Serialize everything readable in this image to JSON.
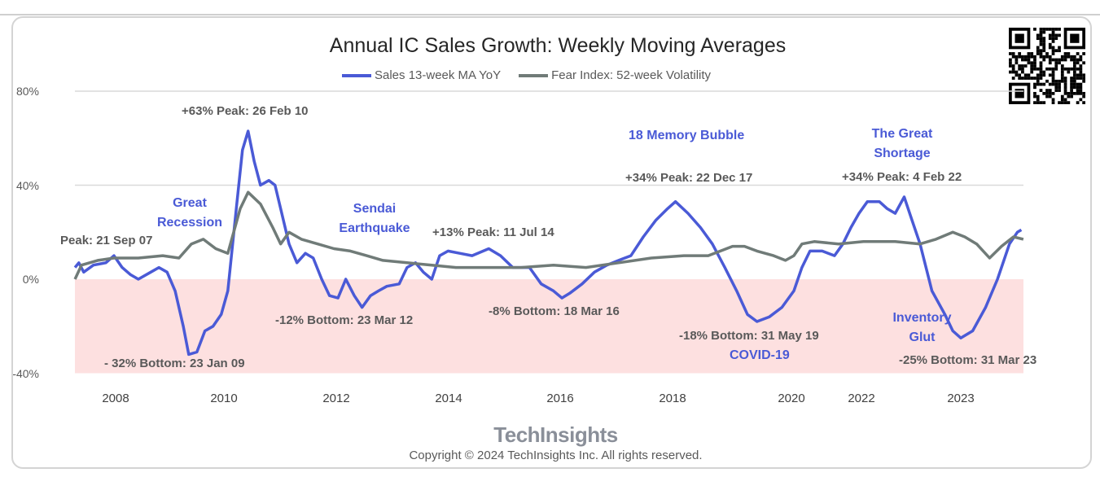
{
  "chart_data": {
    "type": "line",
    "title": "Annual IC Sales Growth: Weekly Moving Averages",
    "legend_position": "top",
    "ylim": [
      -40,
      80
    ],
    "y_ticks": [
      "80%",
      "40%",
      "0%",
      "-40%"
    ],
    "y_tick_values": [
      80,
      40,
      0,
      -40
    ],
    "x_ticks": [
      "2008",
      "2010",
      "2012",
      "2014",
      "2016",
      "2018",
      "2020",
      "2022",
      "2023"
    ],
    "grid": true,
    "negative_region_color": "#fde0e0",
    "series": [
      {
        "name": "Sales 13-week MA YoY",
        "color": "#4a5ad6",
        "x": [
          2007.25,
          2007.32,
          2007.41,
          2007.59,
          2007.82,
          2007.97,
          2008.12,
          2008.27,
          2008.42,
          2008.65,
          2008.8,
          2008.95,
          2009.1,
          2009.25,
          2009.35,
          2009.5,
          2009.65,
          2009.8,
          2009.95,
          2010.07,
          2010.22,
          2010.33,
          2010.43,
          2010.54,
          2010.65,
          2010.8,
          2010.91,
          2011.01,
          2011.16,
          2011.3,
          2011.45,
          2011.59,
          2011.74,
          2011.88,
          2012.03,
          2012.17,
          2012.32,
          2012.46,
          2012.61,
          2012.75,
          2012.9,
          2013.12,
          2013.26,
          2013.41,
          2013.55,
          2013.7,
          2013.84,
          2013.99,
          2014.2,
          2014.42,
          2014.72,
          2014.93,
          2015.15,
          2015.45,
          2015.66,
          2015.88,
          2016.03,
          2016.17,
          2016.39,
          2016.61,
          2016.83,
          2017.04,
          2017.26,
          2017.48,
          2017.7,
          2017.91,
          2018.05,
          2018.26,
          2018.47,
          2018.67,
          2018.88,
          2019.08,
          2019.26,
          2019.42,
          2019.63,
          2019.84,
          2020.07,
          2020.3,
          2020.53,
          2020.88,
          2021.23,
          2021.47,
          2021.7,
          2021.93,
          2022.06,
          2022.18,
          2022.26,
          2022.34,
          2022.43,
          2022.51,
          2022.59,
          2022.71,
          2022.84,
          2022.92,
          2023.0,
          2023.12,
          2023.25,
          2023.37,
          2023.49,
          2023.57,
          2023.61
        ],
        "y": [
          5,
          7,
          3,
          6,
          7,
          10,
          5,
          2,
          0,
          3,
          5,
          3,
          -5,
          -20,
          -32,
          -31,
          -22,
          -20,
          -15,
          -5,
          30,
          55,
          63,
          50,
          40,
          42,
          40,
          30,
          15,
          7,
          11,
          9,
          0,
          -7,
          -8,
          0,
          -7,
          -12,
          -7,
          -5,
          -3,
          -2,
          5,
          7,
          3,
          0,
          10,
          12,
          11,
          10,
          13,
          10,
          5,
          5,
          -2,
          -5,
          -8,
          -6,
          -2,
          3,
          6,
          8,
          10,
          18,
          25,
          30,
          33,
          28,
          22,
          15,
          5,
          -5,
          -15,
          -18,
          -16,
          -12,
          -5,
          5,
          12,
          12,
          10,
          15,
          22,
          28,
          33,
          33,
          30,
          28,
          35,
          25,
          15,
          -5,
          -15,
          -22,
          -25,
          -22,
          -12,
          0,
          15,
          20,
          21
        ]
      },
      {
        "name": "Fear Index: 52-week Volatility",
        "color": "#707b78",
        "x": [
          2007.25,
          2007.37,
          2007.67,
          2007.97,
          2008.42,
          2008.87,
          2009.17,
          2009.4,
          2009.62,
          2009.85,
          2010.07,
          2010.29,
          2010.43,
          2010.65,
          2010.87,
          2011.01,
          2011.16,
          2011.38,
          2011.67,
          2011.96,
          2012.25,
          2012.54,
          2012.83,
          2013.26,
          2013.7,
          2014.13,
          2014.72,
          2015.3,
          2015.88,
          2016.46,
          2017.04,
          2017.62,
          2018.19,
          2018.6,
          2019.01,
          2019.21,
          2019.42,
          2019.7,
          2019.9,
          2020.07,
          2020.3,
          2020.65,
          2021.35,
          2022.02,
          2022.34,
          2022.59,
          2022.75,
          2022.92,
          2023.04,
          2023.16,
          2023.29,
          2023.41,
          2023.53,
          2023.63
        ],
        "y": [
          0,
          6,
          8,
          9,
          9,
          10,
          9,
          15,
          17,
          13,
          11,
          30,
          37,
          32,
          22,
          15,
          20,
          17,
          15,
          13,
          12,
          10,
          8,
          7,
          6,
          5,
          5,
          5,
          6,
          5,
          7,
          9,
          10,
          10,
          14,
          14,
          12,
          10,
          8,
          10,
          15,
          16,
          15,
          16,
          16,
          15,
          17,
          20,
          18,
          15,
          9,
          14,
          18,
          17
        ]
      }
    ],
    "annotations": {
      "peak_2007": "Peak: 21 Sep 07",
      "great_recession": "Great Recession",
      "bottom_2009": "- 32% Bottom: 23 Jan 09",
      "peak_2010": "+63% Peak: 26  Feb 10",
      "sendai": "Sendai Earthquake",
      "bottom_2012": "-12% Bottom: 23 Mar 12",
      "peak_2014": "+13% Peak: 11 Jul 14",
      "bottom_2016": "-8% Bottom: 18 Mar 16",
      "memory_bubble": "18 Memory Bubble",
      "peak_2017": "+34% Peak: 22 Dec 17",
      "bottom_2019": "-18% Bottom: 31 May 19",
      "covid": "COVID-19",
      "great_shortage": "The Great Shortage",
      "peak_2022": "+34% Peak: 4 Feb 22",
      "inventory_glut": "Inventory Glut",
      "bottom_2023": "-25% Bottom: 31 Mar 23"
    }
  },
  "footer": {
    "logo": "TechInsights",
    "copyright": "Copyright © 2024 TechInsights Inc.  All rights reserved."
  }
}
